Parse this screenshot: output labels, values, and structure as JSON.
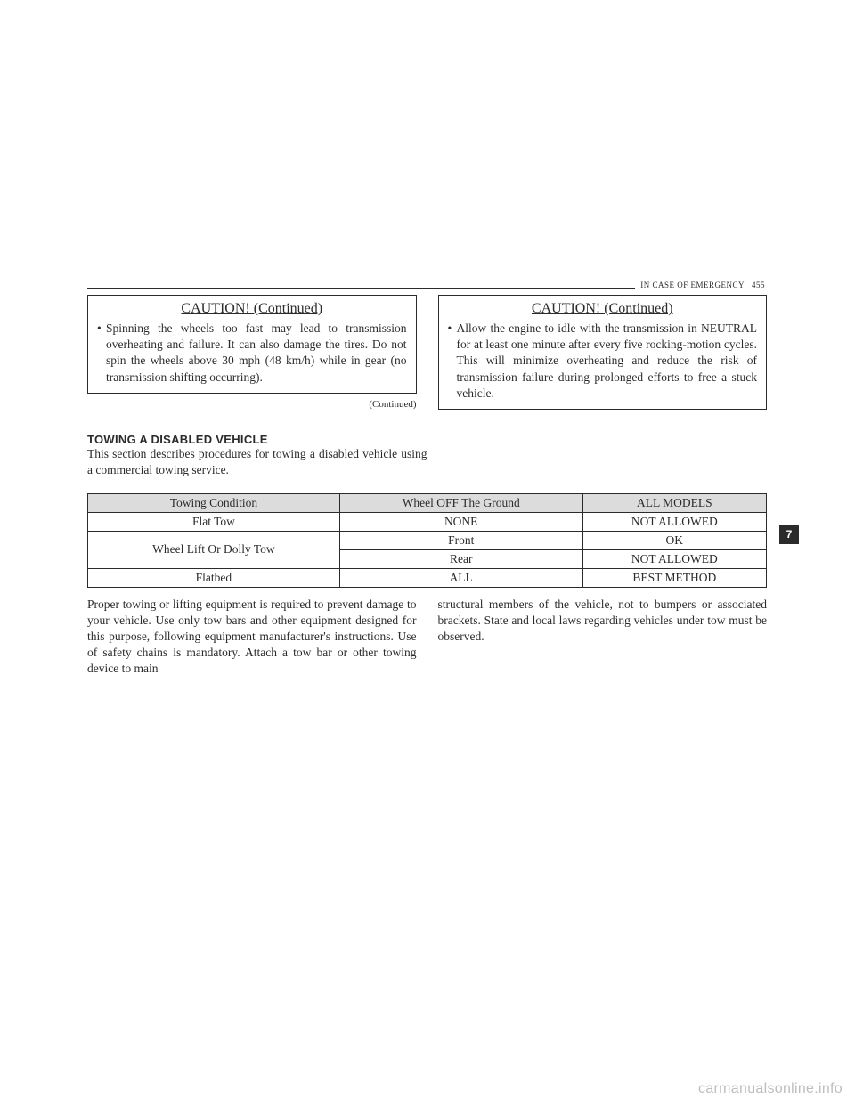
{
  "header": {
    "section": "IN CASE OF EMERGENCY",
    "page_number": "455"
  },
  "caution_left": {
    "title": "CAUTION!  (Continued)",
    "bullet": "Spinning the wheels too fast may lead to transmission overheating and failure. It can also damage the tires. Do not spin the wheels above 30 mph (48 km/h) while in gear (no transmission shifting occurring).",
    "continued": "(Continued)"
  },
  "caution_right": {
    "title": "CAUTION!  (Continued)",
    "bullet": "Allow the engine to idle with the transmission in NEUTRAL for at least one minute after every five rocking-motion cycles. This will minimize overheating and reduce the risk of transmission failure during prolonged efforts to free a stuck vehicle."
  },
  "towing_section": {
    "title": "TOWING A DISABLED VEHICLE",
    "intro": "This section describes procedures for towing a disabled vehicle using a commercial towing service."
  },
  "chapter_tab": "7",
  "table": {
    "headers": [
      "Towing Condition",
      "Wheel OFF The Ground",
      "ALL MODELS"
    ],
    "rows": [
      {
        "cond": "Flat Tow",
        "wheel": "NONE",
        "models": "NOT ALLOWED"
      },
      {
        "cond": "Wheel Lift Or Dolly Tow",
        "wheel": "Front",
        "models": "OK"
      },
      {
        "cond": "",
        "wheel": "Rear",
        "models": "NOT ALLOWED"
      },
      {
        "cond": "Flatbed",
        "wheel": "ALL",
        "models": "BEST METHOD"
      }
    ]
  },
  "lower": {
    "left": "Proper towing or lifting equipment is required to prevent damage to your vehicle. Use only tow bars and other equipment designed for this purpose, following equipment manufacturer's instructions. Use of safety chains is mandatory. Attach a tow bar or other towing device to main",
    "right": "structural members of the vehicle, not to bumpers or associated brackets. State and local laws regarding vehicles under tow must be observed."
  },
  "watermark": "carmanualsonline.info",
  "colors": {
    "text": "#2b2b2b",
    "table_header_bg": "#dcdcdc",
    "tab_bg": "#2b2b2b",
    "tab_fg": "#ffffff",
    "watermark": "#bdbdbd",
    "background": "#ffffff"
  }
}
